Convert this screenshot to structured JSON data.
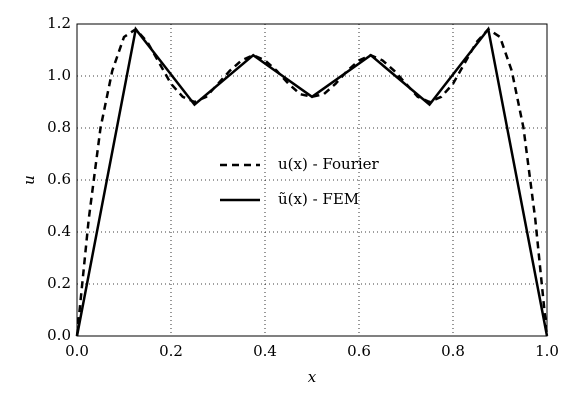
{
  "chart_data": {
    "type": "line",
    "x_label": "x",
    "y_label": "u",
    "series": [
      {
        "name": "u(x) - Fourier",
        "color": "#000000",
        "style": "dashed",
        "x": [
          0,
          0.025,
          0.05,
          0.075,
          0.1,
          0.125,
          0.15,
          0.175,
          0.2,
          0.225,
          0.25,
          0.275,
          0.3,
          0.325,
          0.35,
          0.375,
          0.4,
          0.425,
          0.45,
          0.475,
          0.5,
          0.525,
          0.55,
          0.575,
          0.6,
          0.625,
          0.65,
          0.675,
          0.7,
          0.725,
          0.75,
          0.775,
          0.8,
          0.825,
          0.85,
          0.875,
          0.9,
          0.925,
          0.95,
          0.975,
          1
        ],
        "values": [
          0,
          0.45,
          0.8,
          1.02,
          1.15,
          1.18,
          1.13,
          1.05,
          0.97,
          0.92,
          0.9,
          0.92,
          0.97,
          1.02,
          1.06,
          1.08,
          1.06,
          1.02,
          0.97,
          0.93,
          0.92,
          0.93,
          0.97,
          1.02,
          1.06,
          1.08,
          1.06,
          1.02,
          0.97,
          0.92,
          0.9,
          0.92,
          0.97,
          1.05,
          1.13,
          1.18,
          1.15,
          1.02,
          0.8,
          0.45,
          0
        ]
      },
      {
        "name": "ũ(x) - FEM",
        "color": "#000000",
        "style": "solid",
        "x": [
          0,
          0.125,
          0.25,
          0.375,
          0.5,
          0.625,
          0.75,
          0.875,
          1
        ],
        "values": [
          0,
          1.18,
          0.89,
          1.08,
          0.92,
          1.08,
          0.89,
          1.18,
          0
        ]
      }
    ],
    "xlim": [
      0,
      1
    ],
    "ylim": [
      0,
      1.2
    ],
    "xticks": [
      {
        "value": 0,
        "label": "0.0"
      },
      {
        "value": 0.2,
        "label": "0.2"
      },
      {
        "value": 0.4,
        "label": "0.4"
      },
      {
        "value": 0.6,
        "label": "0.6"
      },
      {
        "value": 0.8,
        "label": "0.8"
      },
      {
        "value": 1,
        "label": "1.0"
      }
    ],
    "yticks": [
      {
        "value": 0,
        "label": "0.0"
      },
      {
        "value": 0.2,
        "label": "0.2"
      },
      {
        "value": 0.4,
        "label": "0.4"
      },
      {
        "value": 0.6,
        "label": "0.6"
      },
      {
        "value": 0.8,
        "label": "0.8"
      },
      {
        "value": 1,
        "label": "1.0"
      },
      {
        "value": 1.2,
        "label": "1.2"
      }
    ],
    "grid": true,
    "legend": "center"
  }
}
